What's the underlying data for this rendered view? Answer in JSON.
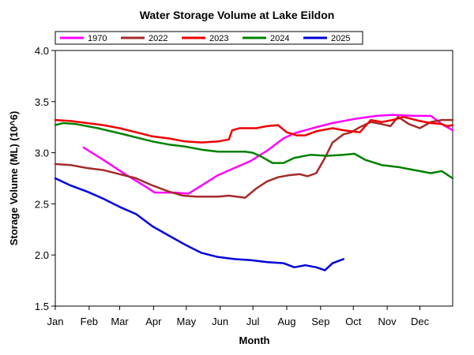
{
  "chart_data": {
    "type": "line",
    "title": "Water Storage Volume at Lake Eildon",
    "xlabel": "Month",
    "ylabel": "Storage Volume (ML) (10^6)",
    "ylim": [
      1.5,
      4.0
    ],
    "yticks": [
      1.5,
      2.0,
      2.5,
      3.0,
      3.5,
      4.0
    ],
    "ytick_labels": [
      "1.5",
      "2.0",
      "2.5",
      "3.0",
      "3.5",
      "4.0"
    ],
    "x_unit": "day of year",
    "xlim": [
      1,
      365
    ],
    "months": [
      {
        "label": "Jan",
        "day": 1
      },
      {
        "label": "Feb",
        "day": 32
      },
      {
        "label": "Mar",
        "day": 60
      },
      {
        "label": "Apr",
        "day": 91
      },
      {
        "label": "May",
        "day": 121
      },
      {
        "label": "Jun",
        "day": 152
      },
      {
        "label": "Jul",
        "day": 182
      },
      {
        "label": "Aug",
        "day": 213
      },
      {
        "label": "Sep",
        "day": 244
      },
      {
        "label": "Oct",
        "day": 274
      },
      {
        "label": "Nov",
        "day": 305
      },
      {
        "label": "Dec",
        "day": 335
      }
    ],
    "grid": false,
    "legend_position": "top",
    "series": [
      {
        "name": "1970",
        "color": "#ff00ff",
        "points": [
          [
            27,
            3.05
          ],
          [
            45,
            2.93
          ],
          [
            65,
            2.79
          ],
          [
            85,
            2.66
          ],
          [
            92,
            2.61
          ],
          [
            110,
            2.61
          ],
          [
            123,
            2.6
          ],
          [
            135,
            2.68
          ],
          [
            150,
            2.78
          ],
          [
            165,
            2.85
          ],
          [
            180,
            2.92
          ],
          [
            195,
            3.02
          ],
          [
            210,
            3.14
          ],
          [
            220,
            3.19
          ],
          [
            240,
            3.25
          ],
          [
            255,
            3.29
          ],
          [
            275,
            3.33
          ],
          [
            295,
            3.36
          ],
          [
            310,
            3.37
          ],
          [
            330,
            3.36
          ],
          [
            345,
            3.36
          ],
          [
            355,
            3.28
          ],
          [
            365,
            3.22
          ]
        ]
      },
      {
        "name": "2022",
        "color": "#a52a2a",
        "points": [
          [
            1,
            2.89
          ],
          [
            15,
            2.88
          ],
          [
            30,
            2.85
          ],
          [
            45,
            2.83
          ],
          [
            60,
            2.79
          ],
          [
            75,
            2.75
          ],
          [
            90,
            2.68
          ],
          [
            105,
            2.62
          ],
          [
            118,
            2.58
          ],
          [
            130,
            2.57
          ],
          [
            150,
            2.57
          ],
          [
            160,
            2.58
          ],
          [
            175,
            2.56
          ],
          [
            185,
            2.65
          ],
          [
            195,
            2.72
          ],
          [
            205,
            2.76
          ],
          [
            215,
            2.78
          ],
          [
            225,
            2.79
          ],
          [
            232,
            2.77
          ],
          [
            240,
            2.8
          ],
          [
            248,
            2.95
          ],
          [
            255,
            3.1
          ],
          [
            265,
            3.18
          ],
          [
            272,
            3.2
          ],
          [
            280,
            3.25
          ],
          [
            290,
            3.3
          ],
          [
            300,
            3.28
          ],
          [
            308,
            3.26
          ],
          [
            315,
            3.35
          ],
          [
            325,
            3.28
          ],
          [
            335,
            3.24
          ],
          [
            345,
            3.3
          ],
          [
            355,
            3.32
          ],
          [
            365,
            3.32
          ]
        ]
      },
      {
        "name": "2023",
        "color": "#ee0000",
        "points": [
          [
            1,
            3.32
          ],
          [
            15,
            3.31
          ],
          [
            30,
            3.29
          ],
          [
            45,
            3.27
          ],
          [
            60,
            3.24
          ],
          [
            75,
            3.2
          ],
          [
            90,
            3.16
          ],
          [
            105,
            3.14
          ],
          [
            120,
            3.11
          ],
          [
            135,
            3.1
          ],
          [
            150,
            3.11
          ],
          [
            160,
            3.13
          ],
          [
            163,
            3.22
          ],
          [
            170,
            3.24
          ],
          [
            185,
            3.24
          ],
          [
            195,
            3.26
          ],
          [
            205,
            3.27
          ],
          [
            213,
            3.2
          ],
          [
            222,
            3.17
          ],
          [
            230,
            3.17
          ],
          [
            240,
            3.21
          ],
          [
            255,
            3.24
          ],
          [
            265,
            3.22
          ],
          [
            280,
            3.2
          ],
          [
            290,
            3.32
          ],
          [
            300,
            3.3
          ],
          [
            310,
            3.32
          ],
          [
            320,
            3.35
          ],
          [
            335,
            3.31
          ],
          [
            345,
            3.29
          ],
          [
            355,
            3.28
          ],
          [
            360,
            3.26
          ],
          [
            365,
            3.27
          ]
        ]
      },
      {
        "name": "2024",
        "color": "#008000",
        "points": [
          [
            1,
            3.27
          ],
          [
            8,
            3.29
          ],
          [
            20,
            3.28
          ],
          [
            40,
            3.24
          ],
          [
            60,
            3.19
          ],
          [
            75,
            3.15
          ],
          [
            90,
            3.11
          ],
          [
            105,
            3.08
          ],
          [
            120,
            3.06
          ],
          [
            135,
            3.03
          ],
          [
            150,
            3.01
          ],
          [
            160,
            3.01
          ],
          [
            175,
            3.01
          ],
          [
            182,
            3.0
          ],
          [
            190,
            2.96
          ],
          [
            200,
            2.9
          ],
          [
            210,
            2.9
          ],
          [
            220,
            2.95
          ],
          [
            235,
            2.98
          ],
          [
            250,
            2.97
          ],
          [
            265,
            2.98
          ],
          [
            275,
            2.99
          ],
          [
            285,
            2.93
          ],
          [
            300,
            2.88
          ],
          [
            315,
            2.86
          ],
          [
            330,
            2.83
          ],
          [
            345,
            2.8
          ],
          [
            355,
            2.82
          ],
          [
            365,
            2.75
          ]
        ]
      },
      {
        "name": "2025",
        "color": "#0000dd",
        "points": [
          [
            1,
            2.75
          ],
          [
            15,
            2.68
          ],
          [
            30,
            2.62
          ],
          [
            45,
            2.55
          ],
          [
            60,
            2.47
          ],
          [
            75,
            2.4
          ],
          [
            90,
            2.28
          ],
          [
            105,
            2.19
          ],
          [
            120,
            2.1
          ],
          [
            135,
            2.02
          ],
          [
            150,
            1.98
          ],
          [
            165,
            1.96
          ],
          [
            180,
            1.95
          ],
          [
            195,
            1.93
          ],
          [
            210,
            1.92
          ],
          [
            220,
            1.88
          ],
          [
            230,
            1.9
          ],
          [
            240,
            1.88
          ],
          [
            248,
            1.85
          ],
          [
            255,
            1.92
          ],
          [
            265,
            1.96
          ]
        ]
      }
    ]
  }
}
